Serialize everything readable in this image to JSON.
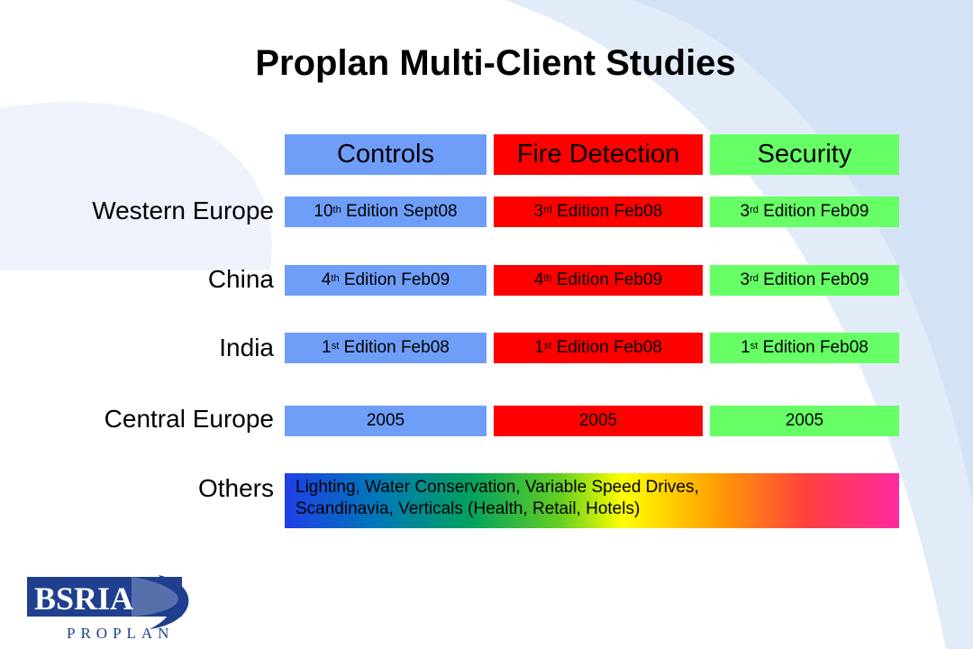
{
  "title": "Proplan Multi-Client Studies",
  "columns": [
    {
      "label": "Controls",
      "color": "#6f9ef9"
    },
    {
      "label": "Fire Detection",
      "color": "#ff0000"
    },
    {
      "label": "Security",
      "color": "#66ff66"
    }
  ],
  "rows": [
    {
      "label": "Western Europe",
      "cells": [
        {
          "num": "10",
          "sup": "th",
          "text": " Edition Sept08"
        },
        {
          "num": "3",
          "sup": "rd",
          "text": " Edition Feb08"
        },
        {
          "num": "3",
          "sup": "rd",
          "text": " Edition Feb09"
        }
      ]
    },
    {
      "label": "China",
      "cells": [
        {
          "num": "4",
          "sup": "th",
          "text": " Edition Feb09"
        },
        {
          "num": "4",
          "sup": "th",
          "text": " Edition Feb09"
        },
        {
          "num": "3",
          "sup": "rd",
          "text": " Edition Feb09"
        }
      ]
    },
    {
      "label": "India",
      "cells": [
        {
          "num": "1",
          "sup": "st",
          "text": " Edition Feb08"
        },
        {
          "num": "1",
          "sup": "st",
          "text": " Edition Feb08"
        },
        {
          "num": "1",
          "sup": "st",
          "text": " Edition Feb08"
        }
      ]
    },
    {
      "label": "Central Europe",
      "cells": [
        "2005",
        "2005",
        "2005"
      ]
    }
  ],
  "others": {
    "label": "Others",
    "line1": "Lighting, Water Conservation, Variable Speed Drives,",
    "line2": "Scandinavia, Verticals (Health, Retail, Hotels)"
  },
  "logo": {
    "name": "BSRIA",
    "sub": "PROPLAN",
    "color": "#1f3f8f"
  }
}
